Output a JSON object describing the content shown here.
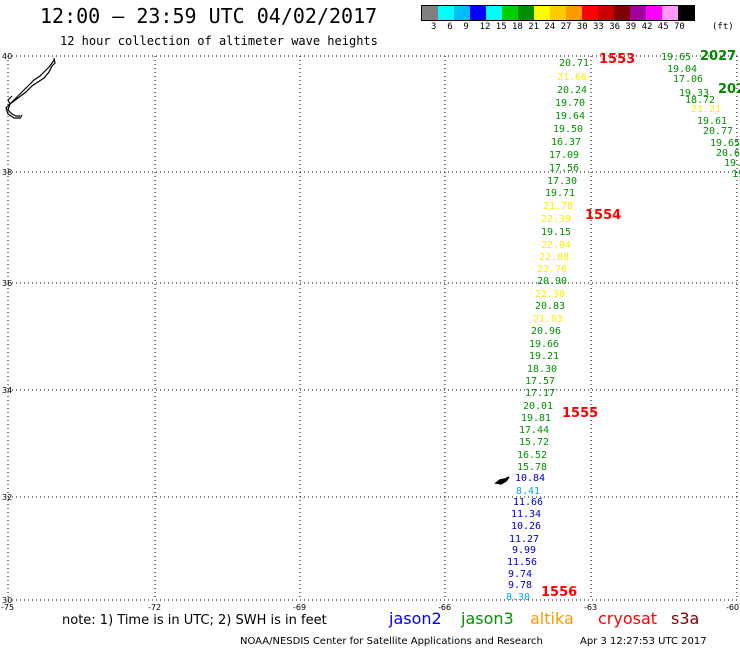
{
  "header": {
    "title": "12:00 – 23:59 UTC 04/02/2017",
    "subtitle": "12 hour collection of altimeter wave heights"
  },
  "legend": {
    "swatches": [
      "#808080",
      "#00ffff",
      "#00bfff",
      "#0000ff",
      "#00ffff",
      "#00d000",
      "#009000",
      "#ffff00",
      "#ffcc00",
      "#ff9900",
      "#ff0000",
      "#cc0000",
      "#800000",
      "#a000a0",
      "#ff00ff",
      "#ff99ff",
      "#000000"
    ],
    "labels": [
      "3",
      "6",
      "9",
      "12",
      "15",
      "18",
      "21",
      "24",
      "27",
      "30",
      "33",
      "36",
      "39",
      "42",
      "45",
      "70",
      "(ft)"
    ]
  },
  "axes": {
    "x_labels": [
      "-75",
      "-72",
      "-69",
      "-66",
      "-63",
      "-60"
    ],
    "y_labels": [
      "40",
      "38",
      "36",
      "34",
      "32",
      "30"
    ]
  },
  "passes": [
    {
      "label": "1553",
      "color": "#ff0000"
    },
    {
      "label": "1554",
      "color": "#ff0000"
    },
    {
      "label": "1555",
      "color": "#ff0000"
    },
    {
      "label": "1556",
      "color": "#ff0000"
    },
    {
      "label": "2027",
      "color": "#008800"
    },
    {
      "label": "202",
      "color": "#008800"
    }
  ],
  "wave_heights": {
    "track_main": [
      {
        "v": "20.71",
        "c": "#009000"
      },
      {
        "v": "21.66",
        "c": "#ffee00"
      },
      {
        "v": "20.24",
        "c": "#009000"
      },
      {
        "v": "19.70",
        "c": "#009000"
      },
      {
        "v": "19.64",
        "c": "#009000"
      },
      {
        "v": "19.50",
        "c": "#009000"
      },
      {
        "v": "16.37",
        "c": "#009000"
      },
      {
        "v": "17.09",
        "c": "#009000"
      },
      {
        "v": "17.56",
        "c": "#009000"
      },
      {
        "v": "17.30",
        "c": "#009000"
      },
      {
        "v": "19.71",
        "c": "#009000"
      },
      {
        "v": "21.78",
        "c": "#ffee00"
      },
      {
        "v": "22.39",
        "c": "#ffee00"
      },
      {
        "v": "19.15",
        "c": "#009000"
      },
      {
        "v": "22.04",
        "c": "#ffee00"
      },
      {
        "v": "22.88",
        "c": "#ffee00"
      },
      {
        "v": "23.76",
        "c": "#ffee00"
      },
      {
        "v": "20.90",
        "c": "#009000"
      },
      {
        "v": "22.30",
        "c": "#ffee00"
      },
      {
        "v": "20.83",
        "c": "#009000"
      },
      {
        "v": "21.03",
        "c": "#ffee00"
      },
      {
        "v": "20.96",
        "c": "#009000"
      },
      {
        "v": "19.66",
        "c": "#009000"
      },
      {
        "v": "19.21",
        "c": "#009000"
      },
      {
        "v": "18.30",
        "c": "#009000"
      },
      {
        "v": "17.57",
        "c": "#009000"
      },
      {
        "v": "17.17",
        "c": "#009000"
      },
      {
        "v": "20.01",
        "c": "#009000"
      },
      {
        "v": "19.81",
        "c": "#009000"
      },
      {
        "v": "17.44",
        "c": "#009000"
      },
      {
        "v": "15.72",
        "c": "#009000"
      },
      {
        "v": "16.52",
        "c": "#009000"
      },
      {
        "v": "15.78",
        "c": "#009000"
      },
      {
        "v": "10.84",
        "c": "#0000cc"
      },
      {
        "v": "8.41",
        "c": "#00aaee"
      },
      {
        "v": "11.66",
        "c": "#0000cc"
      },
      {
        "v": "11.34",
        "c": "#0000cc"
      },
      {
        "v": "10.26",
        "c": "#0000cc"
      },
      {
        "v": "11.27",
        "c": "#0000cc"
      },
      {
        "v": "9.99",
        "c": "#0000cc"
      },
      {
        "v": "11.56",
        "c": "#0000cc"
      },
      {
        "v": "9.74",
        "c": "#0000cc"
      },
      {
        "v": "9.78",
        "c": "#0000cc"
      },
      {
        "v": "8.30",
        "c": "#00aaee"
      }
    ],
    "track_east": [
      {
        "v": "19.65",
        "c": "#009000"
      },
      {
        "v": "19.04",
        "c": "#009000"
      },
      {
        "v": "17.06",
        "c": "#009000"
      },
      {
        "v": "19.33",
        "c": "#009000"
      },
      {
        "v": "18.72",
        "c": "#009000"
      },
      {
        "v": "21.21",
        "c": "#ffee00"
      },
      {
        "v": "19.61",
        "c": "#009000"
      },
      {
        "v": "20.77",
        "c": "#009000"
      },
      {
        "v": "19.65",
        "c": "#009000"
      },
      {
        "v": "20.6",
        "c": "#009000"
      },
      {
        "v": "19.",
        "c": "#009000"
      },
      {
        "v": "19",
        "c": "#009000"
      }
    ]
  },
  "footer": {
    "note": "note: 1) Time is in UTC; 2) SWH is in feet",
    "satellites": [
      {
        "name": "jason2",
        "color": "#0000ff"
      },
      {
        "name": "jason3",
        "color": "#009000"
      },
      {
        "name": "altika",
        "color": "#ff9900"
      },
      {
        "name": "cryosat",
        "color": "#ff0000"
      },
      {
        "name": "s3a",
        "color": "#800000"
      }
    ],
    "credit": "NOAA/NESDIS Center for Satellite Applications and Research",
    "timestamp": "Apr  3 12:27:53 UTC 2017"
  }
}
